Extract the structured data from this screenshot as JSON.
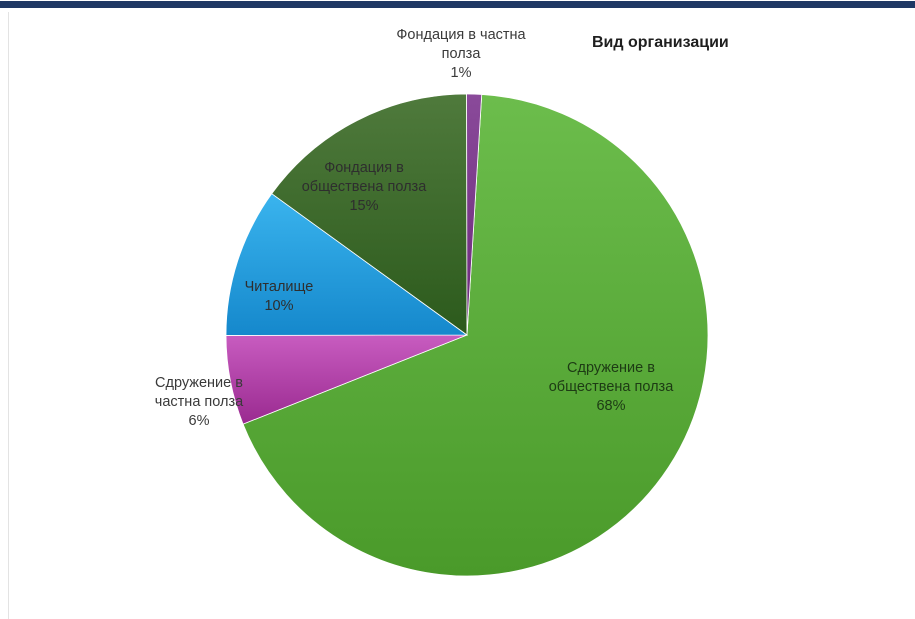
{
  "colors": {
    "banner_dark": "#1f3864",
    "sdruzhenie_obshtestvena": "#5aad3a",
    "fondatsia_obshtestvena": "#3d6b2a",
    "chitalishte": "#1f9fe0",
    "sdruzhenie_chastna": "#b03aa6",
    "fondatsia_chastna": "#7a3a8a"
  },
  "chart_data": {
    "type": "pie",
    "title": "Вид организации",
    "slices": [
      {
        "label": "Сдружение в обществена полза",
        "value": 68,
        "label_lines": [
          "Сдружение в",
          "обществена полза"
        ],
        "percent_text": "68%"
      },
      {
        "label": "Сдружение в частна полза",
        "value": 6,
        "label_lines": [
          "Сдружение в",
          "частна полза"
        ],
        "percent_text": "6%"
      },
      {
        "label": "Читалище",
        "value": 10,
        "label_lines": [
          "Читалище"
        ],
        "percent_text": "10%"
      },
      {
        "label": "Фондация в обществена полза",
        "value": 15,
        "label_lines": [
          "Фондация в",
          "обществена полза"
        ],
        "percent_text": "15%"
      },
      {
        "label": "Фондация в частна полза",
        "value": 1,
        "label_lines": [
          "Фондация в частна",
          "полза"
        ],
        "percent_text": "1%"
      }
    ],
    "legend": "none"
  }
}
